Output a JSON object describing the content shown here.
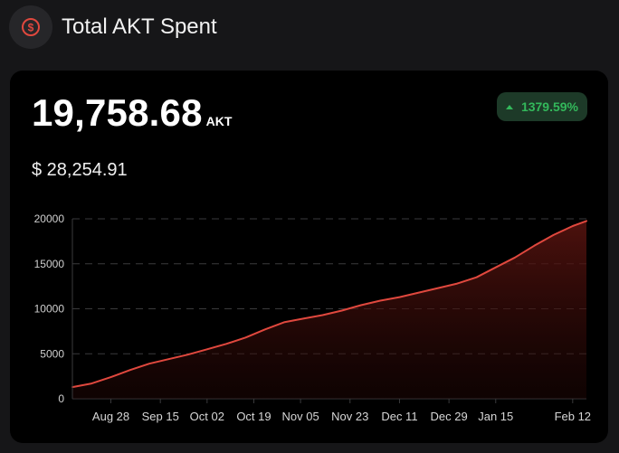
{
  "header": {
    "title": "Total AKT Spent",
    "icon": "dollar-circle-icon",
    "accent": "#e0483e"
  },
  "card": {
    "amount": "19,758.68",
    "unit": "AKT",
    "usd": "$ 28,254.91",
    "change": "1379.59%",
    "change_color": "#33b85b"
  },
  "chart_data": {
    "type": "area",
    "title": "",
    "xlabel": "",
    "ylabel": "",
    "ylim": [
      0,
      20000
    ],
    "y_ticks": [
      "0",
      "5000",
      "10000",
      "15000",
      "20000"
    ],
    "x_ticks": [
      "Aug 28",
      "Sep 15",
      "Oct 02",
      "Oct 19",
      "Nov 05",
      "Nov 23",
      "Dec 11",
      "Dec 29",
      "Jan 15",
      "Feb 12"
    ],
    "grid": true,
    "line_color": "#e0483e",
    "x": [
      "Aug 14",
      "Aug 21",
      "Aug 28",
      "Sep 04",
      "Sep 11",
      "Sep 18",
      "Sep 25",
      "Oct 02",
      "Oct 09",
      "Oct 16",
      "Oct 23",
      "Oct 30",
      "Nov 06",
      "Nov 13",
      "Nov 20",
      "Nov 27",
      "Dec 04",
      "Dec 11",
      "Dec 18",
      "Dec 25",
      "Jan 01",
      "Jan 08",
      "Jan 15",
      "Jan 22",
      "Jan 29",
      "Feb 05",
      "Feb 12",
      "Feb 17"
    ],
    "series": [
      {
        "values": [
          1300,
          1700,
          2400,
          3200,
          3900,
          4400,
          4900,
          5500,
          6100,
          6800,
          7700,
          8500,
          8900,
          9300,
          9800,
          10400,
          10900,
          11300,
          11800,
          12300,
          12800,
          13500,
          14600,
          15700,
          17000,
          18200,
          19200,
          19758.68
        ]
      }
    ]
  }
}
